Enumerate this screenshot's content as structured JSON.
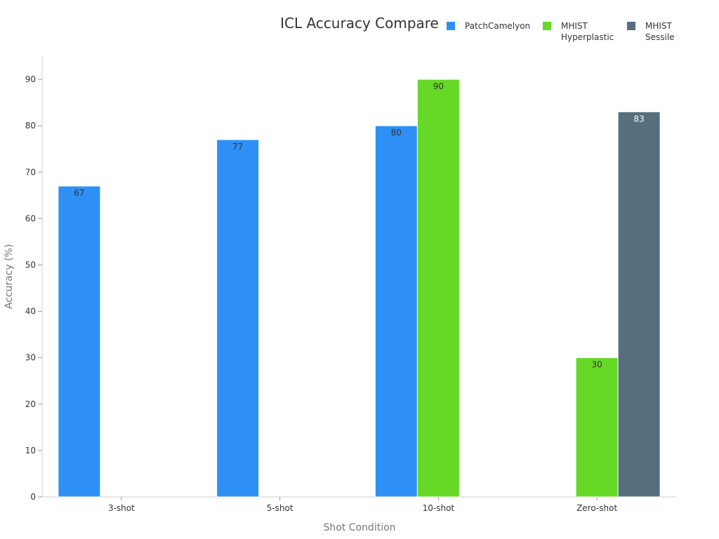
{
  "chart_data": {
    "type": "bar",
    "title": "ICL Accuracy Compare",
    "xlabel": "Shot Condition",
    "ylabel": "Accuracy (%)",
    "categories": [
      "3-shot",
      "5-shot",
      "10-shot",
      "Zero-shot"
    ],
    "ylim": [
      0,
      95
    ],
    "yticks": [
      0,
      10,
      20,
      30,
      40,
      50,
      60,
      70,
      80,
      90
    ],
    "grid": false,
    "legend_position": "top-right",
    "series": [
      {
        "name": "PatchCamelyon",
        "legend_lines": [
          "PatchCamelyon"
        ],
        "color": "#2e90f5",
        "label_color": "#333333",
        "values": [
          67,
          77,
          80,
          null
        ]
      },
      {
        "name": "MHIST Hyperplastic",
        "legend_lines": [
          "MHIST",
          "Hyperplastic"
        ],
        "color": "#66d926",
        "label_color": "#333333",
        "values": [
          null,
          null,
          90,
          30
        ]
      },
      {
        "name": "MHIST Sessile",
        "legend_lines": [
          "MHIST",
          "Sessile"
        ],
        "color": "#566f7c",
        "label_color": "#ffffff",
        "values": [
          null,
          null,
          null,
          83
        ]
      }
    ]
  }
}
